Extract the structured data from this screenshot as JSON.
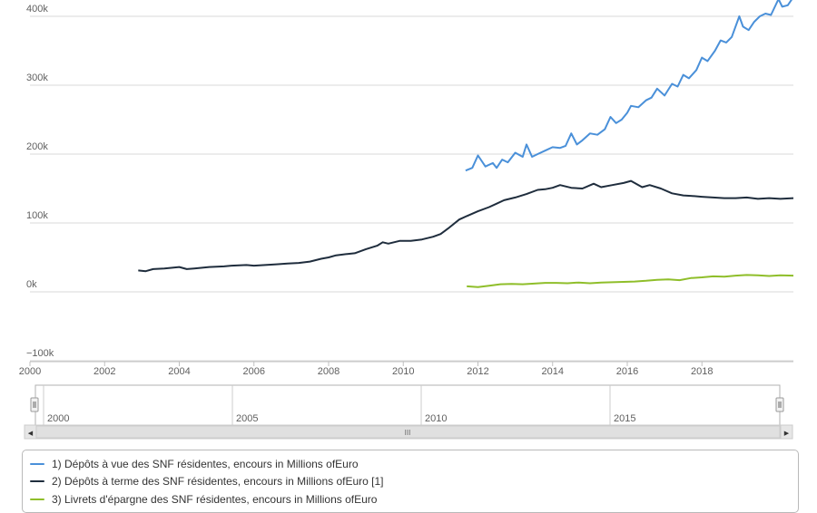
{
  "chart_data": {
    "type": "line",
    "x_range": [
      2000,
      2019.6
    ],
    "y_range": [
      -100000,
      430000
    ],
    "y_ticks": [
      {
        "value": -100000,
        "label": "−100k"
      },
      {
        "value": 0,
        "label": "0k"
      },
      {
        "value": 100000,
        "label": "100k"
      },
      {
        "value": 200000,
        "label": "200k"
      },
      {
        "value": 300000,
        "label": "300k"
      },
      {
        "value": 400000,
        "label": "400k"
      }
    ],
    "x_ticks": [
      "2000",
      "2002",
      "2004",
      "2006",
      "2008",
      "2010",
      "2012",
      "2014",
      "2016",
      "2018"
    ],
    "grid": true,
    "legend_position": "bottom",
    "series": [
      {
        "name": "1) Dépôts à vue des SNF résidentes, encours in Millions ofEuro",
        "color": "#4a90d9",
        "points": [
          [
            2011.67,
            176000
          ],
          [
            2011.85,
            180000
          ],
          [
            2012.0,
            198000
          ],
          [
            2012.2,
            182000
          ],
          [
            2012.4,
            187000
          ],
          [
            2012.5,
            180000
          ],
          [
            2012.65,
            192000
          ],
          [
            2012.8,
            188000
          ],
          [
            2013.0,
            202000
          ],
          [
            2013.2,
            196000
          ],
          [
            2013.3,
            214000
          ],
          [
            2013.45,
            196000
          ],
          [
            2013.6,
            200000
          ],
          [
            2013.8,
            205000
          ],
          [
            2014.0,
            210000
          ],
          [
            2014.2,
            209000
          ],
          [
            2014.35,
            212000
          ],
          [
            2014.5,
            230000
          ],
          [
            2014.65,
            214000
          ],
          [
            2014.8,
            220000
          ],
          [
            2015.0,
            230000
          ],
          [
            2015.2,
            228000
          ],
          [
            2015.4,
            236000
          ],
          [
            2015.55,
            254000
          ],
          [
            2015.7,
            245000
          ],
          [
            2015.85,
            250000
          ],
          [
            2016.0,
            260000
          ],
          [
            2016.1,
            270000
          ],
          [
            2016.3,
            268000
          ],
          [
            2016.5,
            278000
          ],
          [
            2016.65,
            282000
          ],
          [
            2016.8,
            295000
          ],
          [
            2017.0,
            285000
          ],
          [
            2017.2,
            302000
          ],
          [
            2017.35,
            298000
          ],
          [
            2017.5,
            315000
          ],
          [
            2017.65,
            310000
          ],
          [
            2017.85,
            322000
          ],
          [
            2018.0,
            340000
          ],
          [
            2018.15,
            335000
          ],
          [
            2018.35,
            350000
          ],
          [
            2018.5,
            365000
          ],
          [
            2018.65,
            362000
          ],
          [
            2018.8,
            370000
          ],
          [
            2019.0,
            400000
          ],
          [
            2019.1,
            385000
          ],
          [
            2019.25,
            380000
          ],
          [
            2019.4,
            392000
          ],
          [
            2019.55,
            400000
          ],
          [
            2019.7,
            404000
          ],
          [
            2019.85,
            402000
          ],
          [
            2020.05,
            425000
          ],
          [
            2020.15,
            414000
          ],
          [
            2020.3,
            416000
          ],
          [
            2020.45,
            428000
          ]
        ]
      },
      {
        "name": "2) Dépôts à terme des SNF résidentes, encours in Millions ofEuro [1]",
        "color": "#1f2d3d",
        "points": [
          [
            2002.9,
            31000
          ],
          [
            2003.1,
            30000
          ],
          [
            2003.3,
            33000
          ],
          [
            2003.6,
            34000
          ],
          [
            2004.0,
            36000
          ],
          [
            2004.2,
            33000
          ],
          [
            2004.4,
            34000
          ],
          [
            2004.8,
            36000
          ],
          [
            2005.2,
            37000
          ],
          [
            2005.4,
            38000
          ],
          [
            2005.8,
            39000
          ],
          [
            2006.0,
            38000
          ],
          [
            2006.3,
            39000
          ],
          [
            2006.6,
            40000
          ],
          [
            2006.9,
            41000
          ],
          [
            2007.2,
            42000
          ],
          [
            2007.5,
            44000
          ],
          [
            2007.8,
            48000
          ],
          [
            2008.0,
            50000
          ],
          [
            2008.2,
            53000
          ],
          [
            2008.5,
            55000
          ],
          [
            2008.7,
            56000
          ],
          [
            2009.0,
            62000
          ],
          [
            2009.3,
            67000
          ],
          [
            2009.45,
            72000
          ],
          [
            2009.6,
            70000
          ],
          [
            2009.9,
            74000
          ],
          [
            2010.2,
            74000
          ],
          [
            2010.5,
            76000
          ],
          [
            2010.8,
            80000
          ],
          [
            2011.0,
            84000
          ],
          [
            2011.2,
            92000
          ],
          [
            2011.5,
            105000
          ],
          [
            2011.7,
            110000
          ],
          [
            2012.0,
            117000
          ],
          [
            2012.3,
            123000
          ],
          [
            2012.5,
            128000
          ],
          [
            2012.7,
            133000
          ],
          [
            2013.0,
            137000
          ],
          [
            2013.3,
            142000
          ],
          [
            2013.6,
            148000
          ],
          [
            2013.8,
            149000
          ],
          [
            2014.0,
            151000
          ],
          [
            2014.2,
            155000
          ],
          [
            2014.5,
            151000
          ],
          [
            2014.8,
            150000
          ],
          [
            2015.1,
            157000
          ],
          [
            2015.3,
            152000
          ],
          [
            2015.6,
            155000
          ],
          [
            2015.9,
            158000
          ],
          [
            2016.1,
            161000
          ],
          [
            2016.4,
            152000
          ],
          [
            2016.6,
            155000
          ],
          [
            2016.9,
            150000
          ],
          [
            2017.2,
            143000
          ],
          [
            2017.5,
            140000
          ],
          [
            2017.8,
            139000
          ],
          [
            2018.0,
            138000
          ],
          [
            2018.3,
            137000
          ],
          [
            2018.6,
            136000
          ],
          [
            2018.9,
            136000
          ],
          [
            2019.2,
            137000
          ],
          [
            2019.5,
            135000
          ],
          [
            2019.8,
            136000
          ],
          [
            2020.1,
            135000
          ],
          [
            2020.45,
            136000
          ]
        ]
      },
      {
        "name": "3) Livrets d'épargne des SNF résidentes, encours in Millions ofEuro",
        "color": "#8fbe2a",
        "points": [
          [
            2011.7,
            8000
          ],
          [
            2012.0,
            7000
          ],
          [
            2012.3,
            9000
          ],
          [
            2012.6,
            11000
          ],
          [
            2012.9,
            11500
          ],
          [
            2013.2,
            11000
          ],
          [
            2013.5,
            12000
          ],
          [
            2013.8,
            13000
          ],
          [
            2014.1,
            13000
          ],
          [
            2014.4,
            12500
          ],
          [
            2014.7,
            13500
          ],
          [
            2015.0,
            12500
          ],
          [
            2015.3,
            13500
          ],
          [
            2015.6,
            14000
          ],
          [
            2015.9,
            14500
          ],
          [
            2016.2,
            15000
          ],
          [
            2016.5,
            16000
          ],
          [
            2016.8,
            17500
          ],
          [
            2017.1,
            18000
          ],
          [
            2017.4,
            17000
          ],
          [
            2017.7,
            20000
          ],
          [
            2018.0,
            21000
          ],
          [
            2018.3,
            22500
          ],
          [
            2018.6,
            22000
          ],
          [
            2018.9,
            23500
          ],
          [
            2019.2,
            24500
          ],
          [
            2019.5,
            24000
          ],
          [
            2019.8,
            23000
          ],
          [
            2020.1,
            24000
          ],
          [
            2020.45,
            23500
          ]
        ]
      }
    ]
  },
  "navigator": {
    "labels": [
      "2000",
      "2005",
      "2010",
      "2015"
    ],
    "scroll_grip": "III",
    "left_arrow": "◀",
    "right_arrow": "▶"
  }
}
